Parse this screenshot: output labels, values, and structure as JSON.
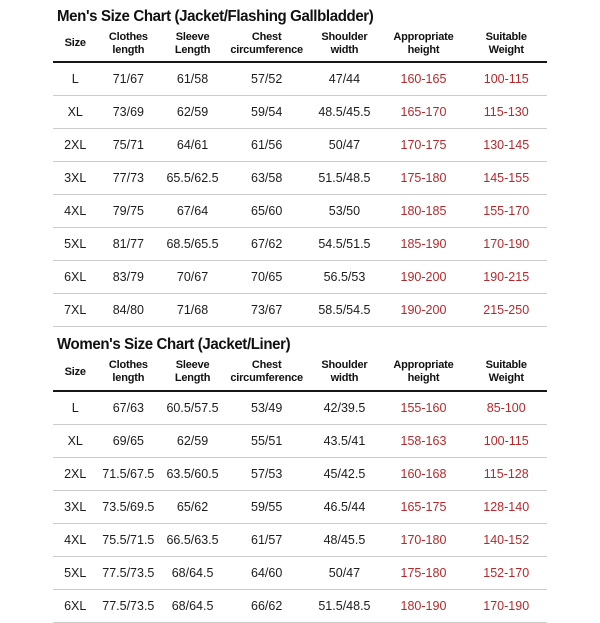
{
  "page": {
    "background_color": "#ffffff",
    "text_color": "#1c1c1c",
    "accent_red": "#b5292c",
    "divider_gray": "#cccccc"
  },
  "men": {
    "title": "Men's Size Chart (Jacket/Flashing Gallbladder)",
    "headers": [
      "Size",
      "Clothes\nlength",
      "Sleeve\nLength",
      "Chest\ncircumference",
      "Shoulder\nwidth",
      "Appropriate\nheight",
      "Suitable\nWeight"
    ],
    "rows": [
      [
        "L",
        "71/67",
        "61/58",
        "57/52",
        "47/44",
        "160-165",
        "100-115"
      ],
      [
        "XL",
        "73/69",
        "62/59",
        "59/54",
        "48.5/45.5",
        "165-170",
        "115-130"
      ],
      [
        "2XL",
        "75/71",
        "64/61",
        "61/56",
        "50/47",
        "170-175",
        "130-145"
      ],
      [
        "3XL",
        "77/73",
        "65.5/62.5",
        "63/58",
        "51.5/48.5",
        "175-180",
        "145-155"
      ],
      [
        "4XL",
        "79/75",
        "67/64",
        "65/60",
        "53/50",
        "180-185",
        "155-170"
      ],
      [
        "5XL",
        "81/77",
        "68.5/65.5",
        "67/62",
        "54.5/51.5",
        "185-190",
        "170-190"
      ],
      [
        "6XL",
        "83/79",
        "70/67",
        "70/65",
        "56.5/53",
        "190-200",
        "190-215"
      ],
      [
        "7XL",
        "84/80",
        "71/68",
        "73/67",
        "58.5/54.5",
        "190-200",
        "215-250"
      ]
    ]
  },
  "women": {
    "title": "Women's Size Chart (Jacket/Liner)",
    "headers": [
      "Size",
      "Clothes\nlength",
      "Sleeve\nLength",
      "Chest\ncircumference",
      "Shoulder\nwidth",
      "Appropriate\nheight",
      "Suitable\nWeight"
    ],
    "rows": [
      [
        "L",
        "67/63",
        "60.5/57.5",
        "53/49",
        "42/39.5",
        "155-160",
        "85-100"
      ],
      [
        "XL",
        "69/65",
        "62/59",
        "55/51",
        "43.5/41",
        "158-163",
        "100-115"
      ],
      [
        "2XL",
        "71.5/67.5",
        "63.5/60.5",
        "57/53",
        "45/42.5",
        "160-168",
        "115-128"
      ],
      [
        "3XL",
        "73.5/69.5",
        "65/62",
        "59/55",
        "46.5/44",
        "165-175",
        "128-140"
      ],
      [
        "4XL",
        "75.5/71.5",
        "66.5/63.5",
        "61/57",
        "48/45.5",
        "170-180",
        "140-152"
      ],
      [
        "5XL",
        "77.5/73.5",
        "68/64.5",
        "64/60",
        "50/47",
        "175-180",
        "152-170"
      ],
      [
        "6XL",
        "77.5/73.5",
        "68/64.5",
        "66/62",
        "51.5/48.5",
        "180-190",
        "170-190"
      ]
    ]
  }
}
